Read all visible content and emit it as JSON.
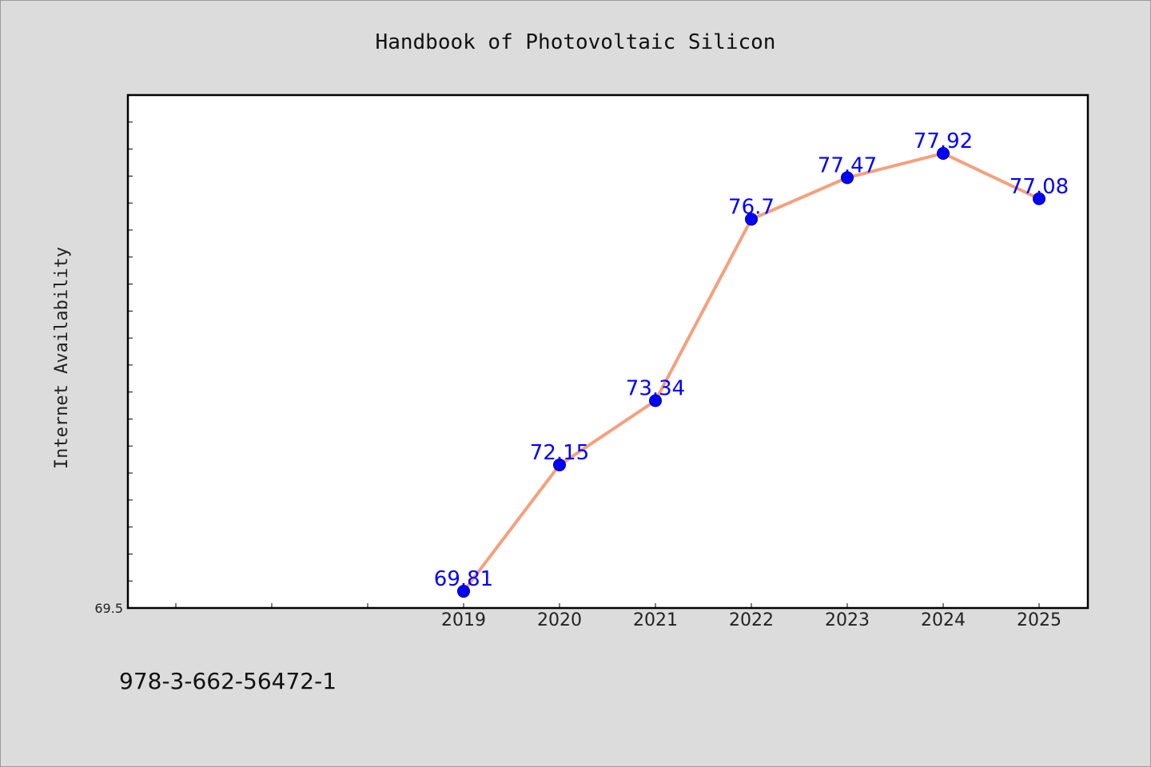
{
  "page": {
    "isbn": "978-3-662-56472-1"
  },
  "chart_data": {
    "type": "line",
    "title": "Handbook of Photovoltaic Silicon",
    "xlabel": "",
    "ylabel": "Internet Availability",
    "categories": [
      "2019",
      "2020",
      "2021",
      "2022",
      "2023",
      "2024",
      "2025"
    ],
    "x_axis_slots": [
      "",
      "",
      "",
      "2019",
      "2020",
      "2021",
      "2022",
      "2023",
      "2024",
      "2025"
    ],
    "series": [
      {
        "values": [
          69.81,
          72.15,
          73.34,
          76.7,
          77.47,
          77.92,
          77.08
        ],
        "labels": [
          "69.81",
          "72.15",
          "73.34",
          "76.7",
          "77.47",
          "77.92",
          "77.08"
        ]
      }
    ],
    "ylim": [
      69.5,
      79.0
    ],
    "ytick_labels": [
      "69.5"
    ],
    "grid": false,
    "colors": {
      "line": "#f4a07e",
      "marker": "#0000ff",
      "label": "#0000ff",
      "plot_bg": "#ffffff",
      "page_bg": "#dcdcdc"
    }
  }
}
